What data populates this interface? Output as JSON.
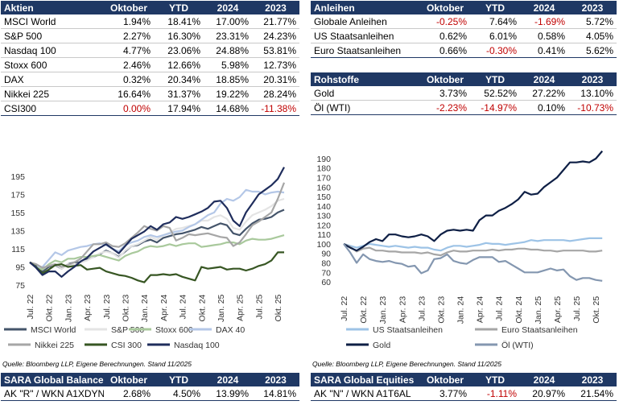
{
  "tables": {
    "aktien": {
      "header": [
        "Aktien",
        "Oktober",
        "YTD",
        "2024",
        "2023"
      ],
      "rows": [
        [
          "MSCI World",
          "1.94%",
          "18.41%",
          "17.00%",
          "21.77%"
        ],
        [
          "S&P 500",
          "2.27%",
          "16.30%",
          "23.31%",
          "24.23%"
        ],
        [
          "Nasdaq 100",
          "4.77%",
          "23.06%",
          "24.88%",
          "53.81%"
        ],
        [
          "Stoxx 600",
          "2.46%",
          "12.66%",
          "5.98%",
          "12.73%"
        ],
        [
          "DAX",
          "0.32%",
          "20.34%",
          "18.85%",
          "20.31%"
        ],
        [
          "Nikkei 225",
          "16.64%",
          "31.37%",
          "19.22%",
          "28.24%"
        ],
        [
          "CSI300",
          "0.00%",
          "17.94%",
          "14.68%",
          "-11.38%"
        ]
      ]
    },
    "anleihen": {
      "header": [
        "Anleihen",
        "Oktober",
        "YTD",
        "2024",
        "2023"
      ],
      "rows": [
        [
          "Globale Anleihen",
          "-0.25%",
          "7.64%",
          "-1.69%",
          "5.72%"
        ],
        [
          "US Staatsanleihen",
          "0.62%",
          "6.01%",
          "0.58%",
          "4.05%"
        ],
        [
          "Euro Staatsanleihen",
          "0.66%",
          "-0.30%",
          "0.41%",
          "5.62%"
        ]
      ]
    },
    "rohstoffe": {
      "header": [
        "Rohstoffe",
        "Oktober",
        "YTD",
        "2024",
        "2023"
      ],
      "rows": [
        [
          "Gold",
          "3.73%",
          "52.52%",
          "27.22%",
          "13.10%"
        ],
        [
          "Öl (WTI)",
          "-2.23%",
          "-14.97%",
          "0.10%",
          "-10.73%"
        ]
      ]
    },
    "sara_balanced": {
      "header": [
        "SARA Global Balanced",
        "Oktober",
        "YTD",
        "2024",
        "2023"
      ],
      "rows": [
        [
          "AK \"R\" / WKN A1XDYN",
          "2.68%",
          "4.50%",
          "13.99%",
          "14.81%"
        ]
      ]
    },
    "sara_equities": {
      "header": [
        "SARA Global Equities",
        "Oktober",
        "YTD",
        "2024",
        "2023"
      ],
      "rows": [
        [
          "AK \"N\" / WKN A1T6AL",
          "3.77%",
          "-1.11%",
          "20.97%",
          "21.54%"
        ]
      ]
    }
  },
  "sources": [
    "Quelle: Bloomberg LLP, Eigene Berechnungen. Stand 11/2025",
    "Quelle: Bloomberg LLP, Eigene Berechnungen. Stand 11/2025"
  ],
  "chart_data": [
    {
      "type": "line",
      "categories": [
        "Jul. 22",
        null,
        null,
        "Okt. 22",
        null,
        null,
        "Jan. 23",
        null,
        null,
        "Apr. 23",
        null,
        null,
        "Jul. 23",
        null,
        null,
        "Okt. 23",
        null,
        null,
        "Jan. 24",
        null,
        null,
        "Apr. 24",
        null,
        null,
        "Jul. 24",
        null,
        null,
        "Okt. 24",
        null,
        null,
        "Jan. 25",
        null,
        null,
        "Apr. 25",
        null,
        null,
        "Jul. 25",
        null,
        null,
        "Okt. 25",
        null
      ],
      "ylim": [
        70,
        210
      ],
      "yticks": [
        75,
        95,
        115,
        135,
        155,
        175,
        195
      ],
      "grid": false,
      "legend": "bottom",
      "series": [
        {
          "name": "MSCI World",
          "color": "#44546a",
          "values": [
            100,
            96,
            90,
            95,
            97,
            93,
            98,
            100,
            100,
            103,
            106,
            109,
            113,
            110,
            106,
            112,
            118,
            119,
            123,
            125,
            122,
            127,
            129,
            131,
            132,
            134,
            136,
            139,
            137,
            140,
            143,
            141,
            132,
            130,
            137,
            143,
            147,
            148,
            150,
            155,
            158
          ]
        },
        {
          "name": "S&P 500",
          "color": "#e4e4e4",
          "values": [
            100,
            95,
            92,
            97,
            98,
            93,
            98,
            97,
            100,
            102,
            106,
            110,
            112,
            110,
            105,
            113,
            118,
            120,
            124,
            128,
            125,
            130,
            133,
            137,
            138,
            140,
            142,
            146,
            146,
            150,
            152,
            148,
            138,
            136,
            145,
            152,
            155,
            158,
            162,
            168,
            170
          ]
        },
        {
          "name": "Stoxx 600",
          "color": "#a9c99c",
          "values": [
            100,
            95,
            92,
            98,
            102,
            100,
            104,
            104,
            106,
            106,
            107,
            108,
            106,
            104,
            102,
            107,
            110,
            112,
            116,
            118,
            117,
            118,
            120,
            118,
            120,
            121,
            121,
            117,
            118,
            119,
            120,
            122,
            122,
            120,
            124,
            126,
            125,
            125,
            126,
            128,
            130
          ]
        },
        {
          "name": "DAX 40",
          "color": "#b4c7e7",
          "values": [
            100,
            95,
            95,
            103,
            111,
            108,
            113,
            115,
            117,
            118,
            120,
            121,
            119,
            115,
            112,
            119,
            122,
            124,
            128,
            130,
            128,
            130,
            132,
            134,
            135,
            139,
            142,
            147,
            152,
            155,
            165,
            170,
            168,
            172,
            180,
            178,
            178,
            175,
            177,
            178,
            177
          ]
        },
        {
          "name": "Nikkei 225",
          "color": "#a6a6a6",
          "values": [
            100,
            98,
            94,
            96,
            98,
            95,
            97,
            100,
            104,
            112,
            120,
            120,
            122,
            118,
            117,
            121,
            127,
            133,
            140,
            137,
            135,
            140,
            138,
            124,
            127,
            131,
            130,
            131,
            132,
            130,
            128,
            127,
            118,
            122,
            131,
            141,
            145,
            150,
            155,
            170,
            188
          ]
        },
        {
          "name": "CSI 300",
          "color": "#375623",
          "values": [
            100,
            95,
            88,
            92,
            97,
            98,
            95,
            96,
            97,
            92,
            93,
            94,
            90,
            88,
            86,
            85,
            83,
            80,
            78,
            86,
            86,
            87,
            86,
            87,
            84,
            82,
            80,
            95,
            93,
            94,
            95,
            92,
            93,
            93,
            91,
            93,
            96,
            98,
            102,
            111,
            111
          ]
        },
        {
          "name": "Nasdaq 100",
          "color": "#1f2d5c",
          "values": [
            100,
            94,
            86,
            90,
            90,
            84,
            90,
            95,
            101,
            105,
            112,
            116,
            120,
            115,
            110,
            118,
            126,
            130,
            134,
            140,
            136,
            142,
            144,
            150,
            148,
            150,
            153,
            156,
            160,
            167,
            168,
            160,
            146,
            140,
            155,
            165,
            175,
            180,
            185,
            192,
            205
          ]
        }
      ]
    },
    {
      "type": "line",
      "categories": [
        "Jul. 22",
        null,
        null,
        "Okt. 22",
        null,
        null,
        "Jan. 23",
        null,
        null,
        "Apr. 23",
        null,
        null,
        "Jul. 23",
        null,
        null,
        "Okt. 23",
        null,
        null,
        "Jan. 24",
        null,
        null,
        "Apr. 24",
        null,
        null,
        "Jul. 24",
        null,
        null,
        "Okt. 24",
        null,
        null,
        "Jan. 25",
        null,
        null,
        "Apr. 25",
        null,
        null,
        "Jul. 25",
        null,
        null,
        "Okt. 25",
        null
      ],
      "ylim": [
        50,
        200
      ],
      "yticks": [
        60,
        70,
        80,
        90,
        100,
        110,
        120,
        130,
        140,
        150,
        160,
        170,
        180,
        190
      ],
      "grid": false,
      "legend": "bottom",
      "series": [
        {
          "name": "US Staatsanleihen",
          "color": "#9dc3e6",
          "values": [
            100,
            98,
            96,
            98,
            100,
            99,
            98,
            97,
            98,
            97,
            96,
            97,
            96,
            96,
            94,
            93,
            96,
            98,
            98,
            97,
            98,
            99,
            101,
            100,
            100,
            99,
            100,
            101,
            102,
            104,
            103,
            104,
            104,
            104,
            104,
            103,
            104,
            105,
            106,
            106,
            106
          ]
        },
        {
          "name": "Euro Staatsanleihen",
          "color": "#a6a6a6",
          "values": [
            100,
            97,
            92,
            95,
            96,
            93,
            93,
            92,
            92,
            91,
            91,
            91,
            90,
            91,
            89,
            88,
            91,
            93,
            92,
            92,
            93,
            93,
            93,
            94,
            93,
            94,
            94,
            95,
            95,
            94,
            94,
            93,
            93,
            92,
            93,
            93,
            93,
            93,
            92,
            92,
            93
          ]
        },
        {
          "name": "Gold",
          "color": "#0e1f45",
          "values": [
            100,
            96,
            93,
            97,
            102,
            105,
            103,
            110,
            110,
            108,
            107,
            108,
            110,
            108,
            103,
            110,
            114,
            115,
            114,
            115,
            114,
            125,
            130,
            130,
            135,
            138,
            142,
            147,
            155,
            152,
            153,
            160,
            165,
            170,
            178,
            186,
            186,
            187,
            186,
            190,
            198
          ]
        },
        {
          "name": "Öl (WTI)",
          "color": "#8497b0",
          "values": [
            100,
            91,
            80,
            89,
            84,
            82,
            81,
            82,
            80,
            79,
            76,
            77,
            69,
            72,
            84,
            85,
            89,
            82,
            80,
            79,
            83,
            86,
            86,
            86,
            81,
            82,
            78,
            74,
            70,
            70,
            70,
            72,
            74,
            72,
            73,
            66,
            62,
            64,
            64,
            62,
            61
          ]
        }
      ]
    }
  ]
}
